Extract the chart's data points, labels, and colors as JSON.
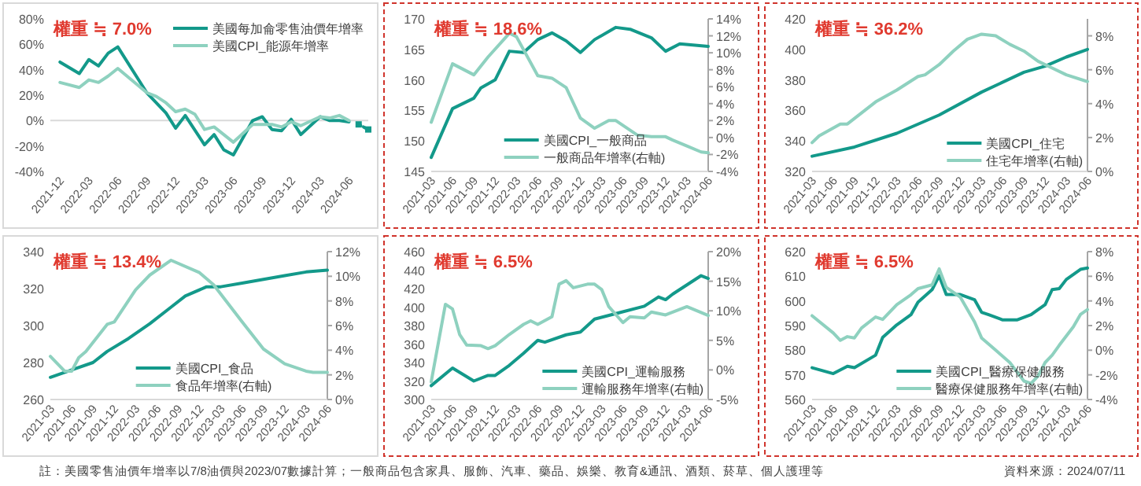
{
  "chart_data": [
    {
      "type": "line",
      "title": "權重 ≒ 7.0%",
      "xlim": [
        "2021-11",
        "2024-08"
      ],
      "xticks": [
        "2021-12",
        "2022-03",
        "2022-06",
        "2022-09",
        "2022-12",
        "2023-03",
        "2023-06",
        "2023-09",
        "2023-12",
        "2024-03",
        "2024-06"
      ],
      "ylim": [
        -40,
        80
      ],
      "yticks": [
        {
          "value": -40,
          "label": "-40%"
        },
        {
          "value": -20,
          "label": "-20%"
        },
        {
          "value": 0,
          "label": "0%"
        },
        {
          "value": 20,
          "label": "20%"
        },
        {
          "value": 40,
          "label": "40%"
        },
        {
          "value": 60,
          "label": "60%"
        },
        {
          "value": 80,
          "label": "80%"
        }
      ],
      "legend": "top right",
      "series": [
        {
          "name": "美國每加侖零售油價年增率",
          "color": "#13998a",
          "x": [
            "2021-12",
            "2022-02",
            "2022-03",
            "2022-04",
            "2022-05",
            "2022-06",
            "2022-09",
            "2022-11",
            "2022-12",
            "2023-01",
            "2023-03",
            "2023-04",
            "2023-05",
            "2023-06",
            "2023-08",
            "2023-09",
            "2023-10",
            "2023-11",
            "2023-12",
            "2024-01",
            "2024-03",
            "2024-04",
            "2024-05",
            "2024-06"
          ],
          "values": [
            46,
            37,
            48,
            43,
            53,
            58,
            22,
            6,
            -6,
            4,
            -19,
            -11,
            -23,
            -27,
            0,
            3,
            -7,
            -8,
            1,
            -11,
            3,
            0,
            0,
            -1
          ]
        },
        {
          "name": "美國CPI_能源年增率",
          "color": "#8ed1bf",
          "x": [
            "2021-12",
            "2022-02",
            "2022-03",
            "2022-04",
            "2022-05",
            "2022-06",
            "2022-09",
            "2022-10",
            "2022-11",
            "2022-12",
            "2023-01",
            "2023-02",
            "2023-03",
            "2023-04",
            "2023-06",
            "2023-08",
            "2023-10",
            "2023-11",
            "2023-12",
            "2024-01",
            "2024-03",
            "2024-04",
            "2024-05",
            "2024-06"
          ],
          "values": [
            30,
            26,
            32,
            30,
            35,
            41,
            22,
            19,
            14,
            7,
            9,
            5,
            -7,
            -5,
            -17,
            -3,
            -3,
            -5,
            -1,
            -4,
            3,
            2,
            4,
            0
          ]
        },
        {
          "color": "#13998a",
          "marker": "square",
          "line_style": "dotted",
          "x": [
            "2024-07",
            "2024-08"
          ],
          "values": [
            -3,
            -7
          ]
        }
      ]
    },
    {
      "type": "line",
      "title": "權重 ≒ 18.6%",
      "xlim": [
        "2021-03",
        "2024-06"
      ],
      "xticks": [
        "2021-03",
        "2021-06",
        "2021-09",
        "2021-12",
        "2022-03",
        "2022-06",
        "2022-09",
        "2022-12",
        "2023-03",
        "2023-06",
        "2023-09",
        "2023-12",
        "2024-03",
        "2024-06"
      ],
      "ylim": [
        145,
        170
      ],
      "yticks": [
        145,
        150,
        155,
        160,
        165,
        170
      ],
      "y2lim": [
        -4,
        14
      ],
      "y2ticks": [
        {
          "value": -4,
          "label": "-4%"
        },
        {
          "value": -2,
          "label": "-2%"
        },
        {
          "value": 0,
          "label": "0%"
        },
        {
          "value": 2,
          "label": "2%"
        },
        {
          "value": 4,
          "label": "4%"
        },
        {
          "value": 6,
          "label": "6%"
        },
        {
          "value": 8,
          "label": "8%"
        },
        {
          "value": 10,
          "label": "10%"
        },
        {
          "value": 12,
          "label": "12%"
        },
        {
          "value": 14,
          "label": "14%"
        }
      ],
      "legend": "bottom",
      "series": [
        {
          "name": "美國CPI_一般商品",
          "color": "#13998a",
          "x": [
            "2021-03",
            "2021-06",
            "2021-09",
            "2021-10",
            "2021-12",
            "2022-02",
            "2022-04",
            "2022-06",
            "2022-08",
            "2022-10",
            "2022-12",
            "2023-02",
            "2023-05",
            "2023-07",
            "2023-10",
            "2023-12",
            "2024-02",
            "2024-06"
          ],
          "values": [
            147.3,
            155.3,
            157,
            158.7,
            160,
            164.7,
            164.5,
            166.6,
            167.7,
            166.4,
            164.5,
            166.6,
            168.6,
            168.3,
            166.9,
            164.7,
            165.9,
            165.5
          ]
        },
        {
          "name": "一般商品年增率(右軸)",
          "color": "#8ed1bf",
          "axis": "y2",
          "x": [
            "2021-03",
            "2021-06",
            "2021-09",
            "2021-11",
            "2022-02",
            "2022-03",
            "2022-06",
            "2022-08",
            "2022-10",
            "2022-12",
            "2023-02",
            "2023-04",
            "2023-05",
            "2023-08",
            "2023-10",
            "2023-12",
            "2024-01",
            "2024-03",
            "2024-05",
            "2024-06"
          ],
          "values": [
            1.8,
            8.7,
            7.4,
            9.5,
            12.3,
            11.9,
            7.3,
            7,
            5.9,
            2.3,
            1.1,
            2,
            2,
            0.3,
            0.1,
            0.1,
            -0.3,
            -1,
            -1.7,
            -1.8
          ]
        }
      ]
    },
    {
      "type": "line",
      "title": "權重 ≒ 36.2%",
      "xlim": [
        "2021-03",
        "2024-06"
      ],
      "xticks": [
        "2021-03",
        "2021-06",
        "2021-09",
        "2021-12",
        "2022-03",
        "2022-06",
        "2022-09",
        "2022-12",
        "2023-03",
        "2023-06",
        "2023-09",
        "2023-12",
        "2024-03",
        "2024-06"
      ],
      "ylim": [
        320,
        420
      ],
      "yticks": [
        320,
        340,
        360,
        380,
        400,
        420
      ],
      "y2lim": [
        0,
        9
      ],
      "y2ticks": [
        {
          "value": 0,
          "label": "0%"
        },
        {
          "value": 2,
          "label": "2%"
        },
        {
          "value": 4,
          "label": "4%"
        },
        {
          "value": 6,
          "label": "6%"
        },
        {
          "value": 8,
          "label": "8%"
        }
      ],
      "legend": "bottom right",
      "series": [
        {
          "name": "美國CPI_住宅",
          "color": "#13998a",
          "x": [
            "2021-03",
            "2021-09",
            "2022-03",
            "2022-09",
            "2023-03",
            "2023-09",
            "2023-12",
            "2024-03",
            "2024-06"
          ],
          "values": [
            330,
            336,
            345,
            357,
            372,
            385,
            389,
            395,
            400
          ]
        },
        {
          "name": "住宅年增率(右軸)",
          "color": "#8ed1bf",
          "axis": "y2",
          "x": [
            "2021-03",
            "2021-04",
            "2021-07",
            "2021-08",
            "2021-12",
            "2022-03",
            "2022-06",
            "2022-07",
            "2022-09",
            "2022-11",
            "2023-01",
            "2023-03",
            "2023-05",
            "2023-07",
            "2023-09",
            "2023-11",
            "2024-01",
            "2024-03",
            "2024-06"
          ],
          "values": [
            1.7,
            2.1,
            2.8,
            2.8,
            4.1,
            4.8,
            5.6,
            5.7,
            6.3,
            7.1,
            7.8,
            8.1,
            8,
            7.5,
            7.1,
            6.5,
            6.1,
            5.7,
            5.3
          ]
        }
      ]
    },
    {
      "type": "line",
      "title": "權重 ≒ 13.4%",
      "xlim": [
        "2021-03",
        "2024-06"
      ],
      "xticks": [
        "2021-03",
        "2021-06",
        "2021-09",
        "2021-12",
        "2022-03",
        "2022-06",
        "2022-09",
        "2022-12",
        "2023-03",
        "2023-06",
        "2023-09",
        "2023-12",
        "2024-03",
        "2024-06"
      ],
      "ylim": [
        260,
        340
      ],
      "yticks": [
        260,
        280,
        300,
        320,
        340
      ],
      "y2lim": [
        0,
        12
      ],
      "y2ticks": [
        {
          "value": 0,
          "label": "0%"
        },
        {
          "value": 2,
          "label": "2%"
        },
        {
          "value": 4,
          "label": "4%"
        },
        {
          "value": 6,
          "label": "6%"
        },
        {
          "value": 8,
          "label": "8%"
        },
        {
          "value": 10,
          "label": "10%"
        },
        {
          "value": 12,
          "label": "12%"
        }
      ],
      "legend": "bottom",
      "annotations": [
        "註：美國零售油價年增率以7/8油價與2023/07數據計算；一般商品包含家具、服飾、汽車、藥品、娛樂、教育&通訊、酒類、菸草、個人護理等"
      ],
      "series": [
        {
          "name": "美國CPI_食品",
          "color": "#13998a",
          "x": [
            "2021-03",
            "2021-06",
            "2021-09",
            "2021-11",
            "2022-02",
            "2022-05",
            "2022-08",
            "2022-10",
            "2023-01",
            "2023-03",
            "2023-06",
            "2023-09",
            "2023-12",
            "2024-03",
            "2024-06"
          ],
          "values": [
            272,
            276,
            280,
            286,
            293,
            301,
            310,
            316,
            321,
            321,
            323,
            325,
            327,
            329,
            330
          ]
        },
        {
          "name": "食品年增率(右軸)",
          "color": "#8ed1bf",
          "axis": "y2",
          "x": [
            "2021-03",
            "2021-05",
            "2021-06",
            "2021-07",
            "2021-08",
            "2021-11",
            "2021-12",
            "2022-03",
            "2022-05",
            "2022-08",
            "2022-12",
            "2023-02",
            "2023-06",
            "2023-09",
            "2023-12",
            "2024-03",
            "2024-04",
            "2024-06"
          ],
          "values": [
            3.5,
            2.3,
            2.3,
            3.4,
            3.9,
            6.1,
            6.3,
            8.9,
            10.1,
            11.3,
            10.3,
            9.3,
            6.3,
            4.1,
            2.9,
            2.3,
            2.2,
            2.2
          ]
        }
      ]
    },
    {
      "type": "line",
      "title": "權重 ≒ 6.5%",
      "xlim": [
        "2021-03",
        "2024-06"
      ],
      "xticks": [
        "2021-03",
        "2021-06",
        "2021-09",
        "2021-12",
        "2022-03",
        "2022-06",
        "2022-09",
        "2022-12",
        "2023-03",
        "2023-06",
        "2023-09",
        "2023-12",
        "2024-03",
        "2024-06"
      ],
      "ylim": [
        300,
        460
      ],
      "yticks": [
        300,
        320,
        340,
        360,
        380,
        400,
        420,
        440,
        460
      ],
      "y2lim": [
        -5,
        20
      ],
      "y2ticks": [
        {
          "value": -5,
          "label": "-5%"
        },
        {
          "value": 0,
          "label": "0%"
        },
        {
          "value": 5,
          "label": "5%"
        },
        {
          "value": 10,
          "label": "10%"
        },
        {
          "value": 15,
          "label": "15%"
        },
        {
          "value": 20,
          "label": "20%"
        }
      ],
      "legend": "bottom right",
      "series": [
        {
          "name": "美國CPI_運輸服務",
          "color": "#13998a",
          "x": [
            "2021-03",
            "2021-06",
            "2021-09",
            "2021-11",
            "2021-12",
            "2022-02",
            "2022-04",
            "2022-06",
            "2022-07",
            "2022-10",
            "2022-12",
            "2023-02",
            "2023-05",
            "2023-09",
            "2023-11",
            "2023-12",
            "2024-01",
            "2024-05",
            "2024-06"
          ],
          "values": [
            315,
            334,
            320,
            326,
            326,
            337,
            350,
            364,
            362,
            370,
            373,
            387,
            393,
            401,
            411,
            408,
            414,
            434,
            431
          ]
        },
        {
          "name": "運輸服務年增率(右軸)",
          "color": "#8ed1bf",
          "axis": "y2",
          "x": [
            "2021-03",
            "2021-05",
            "2021-06",
            "2021-07",
            "2021-08",
            "2021-10",
            "2021-11",
            "2021-12",
            "2022-02",
            "2022-04",
            "2022-05",
            "2022-06",
            "2022-08",
            "2022-09",
            "2022-10",
            "2022-11",
            "2023-01",
            "2023-02",
            "2023-03",
            "2023-04",
            "2023-06",
            "2023-07",
            "2023-09",
            "2023-10",
            "2023-12",
            "2024-03",
            "2024-06"
          ],
          "values": [
            -2,
            11.1,
            10.3,
            6,
            4.2,
            4.1,
            3.6,
            4.1,
            6,
            7.7,
            8.3,
            7.7,
            9,
            14.5,
            15.1,
            13.9,
            14.5,
            14.5,
            13.6,
            10.7,
            8,
            9,
            8.8,
            9.8,
            9.3,
            10.7,
            9.2
          ]
        }
      ]
    },
    {
      "type": "line",
      "title": "權重 ≒ 6.5%",
      "xlim": [
        "2021-03",
        "2024-06"
      ],
      "xticks": [
        "2021-03",
        "2021-06",
        "2021-09",
        "2021-12",
        "2022-03",
        "2022-06",
        "2022-09",
        "2022-12",
        "2023-03",
        "2023-06",
        "2023-09",
        "2023-12",
        "2024-03",
        "2024-06"
      ],
      "ylim": [
        560,
        620
      ],
      "yticks": [
        560,
        570,
        580,
        590,
        600,
        610,
        620
      ],
      "y2lim": [
        -4,
        8
      ],
      "y2ticks": [
        {
          "value": -4,
          "label": "-4%"
        },
        {
          "value": -2,
          "label": "-2%"
        },
        {
          "value": 0,
          "label": "0%"
        },
        {
          "value": 2,
          "label": "2%"
        },
        {
          "value": 4,
          "label": "4%"
        },
        {
          "value": 6,
          "label": "6%"
        },
        {
          "value": 8,
          "label": "8%"
        }
      ],
      "legend": "bottom right",
      "annotations": [
        "資料來源：2024/07/11"
      ],
      "series": [
        {
          "name": "美國CPI_醫療保健服務",
          "color": "#13998a",
          "x": [
            "2021-03",
            "2021-06",
            "2021-08",
            "2021-09",
            "2021-12",
            "2022-01",
            "2022-03",
            "2022-05",
            "2022-06",
            "2022-08",
            "2022-09",
            "2022-10",
            "2022-12",
            "2023-02",
            "2023-03",
            "2023-04",
            "2023-06",
            "2023-08",
            "2023-10",
            "2023-12",
            "2024-01",
            "2024-02",
            "2024-03",
            "2024-05",
            "2024-06"
          ],
          "values": [
            572.9,
            570.5,
            573.5,
            572.9,
            578,
            585.2,
            590.3,
            594.4,
            599.5,
            604.6,
            610.2,
            602.6,
            602.6,
            600.5,
            595.4,
            594.4,
            592.3,
            592.3,
            594.4,
            598.5,
            604.6,
            605,
            608.7,
            612.8,
            613.4
          ]
        },
        {
          "name": "醫療保健服務年增率(右軸)",
          "color": "#8ed1bf",
          "axis": "y2",
          "x": [
            "2021-03",
            "2021-06",
            "2021-07",
            "2021-08",
            "2021-09",
            "2021-10",
            "2021-12",
            "2022-01",
            "2022-03",
            "2022-05",
            "2022-06",
            "2022-08",
            "2022-09",
            "2022-10",
            "2022-12",
            "2023-02",
            "2023-03",
            "2023-05",
            "2023-07",
            "2023-09",
            "2023-10",
            "2023-11",
            "2023-12",
            "2024-01",
            "2024-02",
            "2024-04",
            "2024-05",
            "2024-06"
          ],
          "values": [
            2.8,
            1.4,
            0.8,
            1.1,
            1,
            1.8,
            2.7,
            2.5,
            3.7,
            4.5,
            5,
            5.3,
            6.6,
            5.1,
            4.3,
            2.3,
            1,
            0,
            -1,
            -2.5,
            -2.7,
            -2.1,
            -1,
            -0.4,
            0.4,
            1.9,
            2.9,
            3.3
          ]
        }
      ]
    }
  ]
}
